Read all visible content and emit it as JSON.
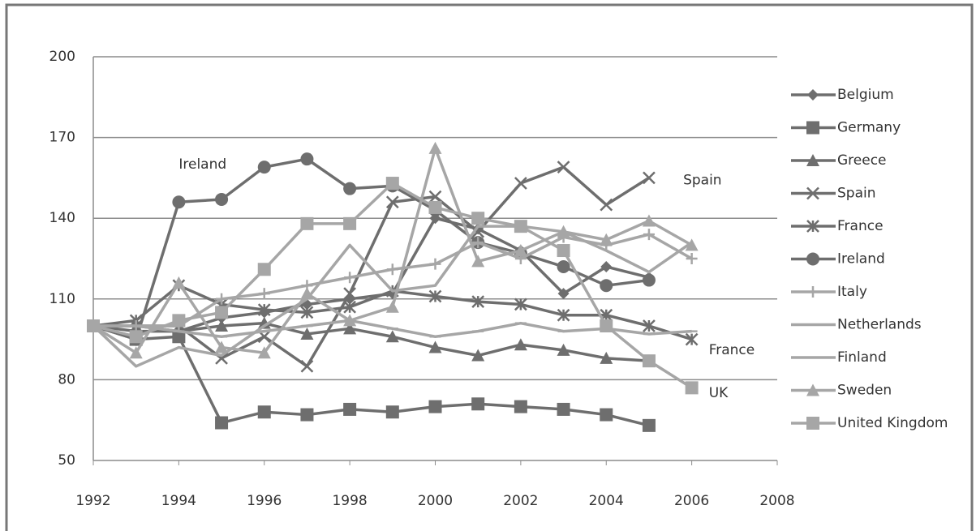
{
  "chart_data": {
    "type": "line",
    "x": [
      1992,
      1993,
      1994,
      1995,
      1996,
      1997,
      1998,
      1999,
      2000,
      2001,
      2002,
      2003,
      2004,
      2005,
      2006
    ],
    "series": [
      {
        "name": "Belgium",
        "color": "#6e6e6e",
        "marker": "diamond",
        "values": [
          100,
          100,
          98,
          103,
          105,
          108,
          110,
          112,
          140,
          136,
          128,
          112,
          122,
          118,
          null
        ]
      },
      {
        "name": "Germany",
        "color": "#6e6e6e",
        "marker": "square",
        "values": [
          100,
          95,
          96,
          64,
          68,
          67,
          69,
          68,
          70,
          71,
          70,
          69,
          67,
          63,
          null
        ]
      },
      {
        "name": "Greece",
        "color": "#6e6e6e",
        "marker": "triangle",
        "values": [
          100,
          98,
          98,
          100,
          101,
          97,
          99,
          96,
          92,
          89,
          93,
          91,
          88,
          87,
          null
        ]
      },
      {
        "name": "Spain",
        "color": "#6e6e6e",
        "marker": "x",
        "values": [
          100,
          100,
          100,
          88,
          96,
          85,
          112,
          146,
          148,
          135,
          153,
          159,
          145,
          155,
          null
        ]
      },
      {
        "name": "France",
        "color": "#6e6e6e",
        "marker": "star",
        "values": [
          100,
          102,
          115,
          108,
          106,
          105,
          107,
          113,
          111,
          109,
          108,
          104,
          104,
          100,
          95
        ]
      },
      {
        "name": "Ireland",
        "color": "#6e6e6e",
        "marker": "circle",
        "values": [
          100,
          95,
          146,
          147,
          159,
          162,
          151,
          152,
          143,
          131,
          127,
          122,
          115,
          117,
          null
        ]
      },
      {
        "name": "Italy",
        "color": "#a6a6a6",
        "marker": "plus",
        "values": [
          100,
          100,
          100,
          110,
          112,
          115,
          118,
          121,
          123,
          131,
          125,
          133,
          130,
          134,
          125
        ]
      },
      {
        "name": "Netherlands",
        "color": "#a6a6a6",
        "marker": "dash",
        "values": [
          100,
          100,
          98,
          96,
          98,
          100,
          102,
          99,
          96,
          98,
          101,
          98,
          99,
          97,
          98
        ]
      },
      {
        "name": "Finland",
        "color": "#a6a6a6",
        "marker": "none",
        "values": [
          100,
          85,
          92,
          89,
          100,
          110,
          130,
          113,
          115,
          137,
          137,
          135,
          128,
          120,
          131
        ]
      },
      {
        "name": "Sweden",
        "color": "#a6a6a6",
        "marker": "triangle",
        "values": [
          100,
          90,
          116,
          92,
          90,
          112,
          102,
          107,
          166,
          124,
          128,
          135,
          132,
          139,
          130
        ]
      },
      {
        "name": "United Kingdom",
        "color": "#a6a6a6",
        "marker": "square",
        "values": [
          100,
          96,
          102,
          105,
          121,
          138,
          138,
          153,
          144,
          140,
          137,
          128,
          100,
          87,
          77
        ]
      }
    ],
    "xlim": [
      1992,
      2008
    ],
    "xticks": [
      1992,
      1994,
      1996,
      1998,
      2000,
      2002,
      2004,
      2006,
      2008
    ],
    "ylim": [
      50,
      200
    ],
    "yticks": [
      50,
      80,
      110,
      140,
      170,
      200
    ],
    "grid": true,
    "legend": "right",
    "annotations": [
      {
        "text": "Ireland",
        "x": 1994,
        "y": 160
      },
      {
        "text": "Spain",
        "x": 2005.8,
        "y": 154
      },
      {
        "text": "France",
        "x": 2006.4,
        "y": 91
      },
      {
        "text": "UK",
        "x": 2006.4,
        "y": 75
      }
    ]
  }
}
